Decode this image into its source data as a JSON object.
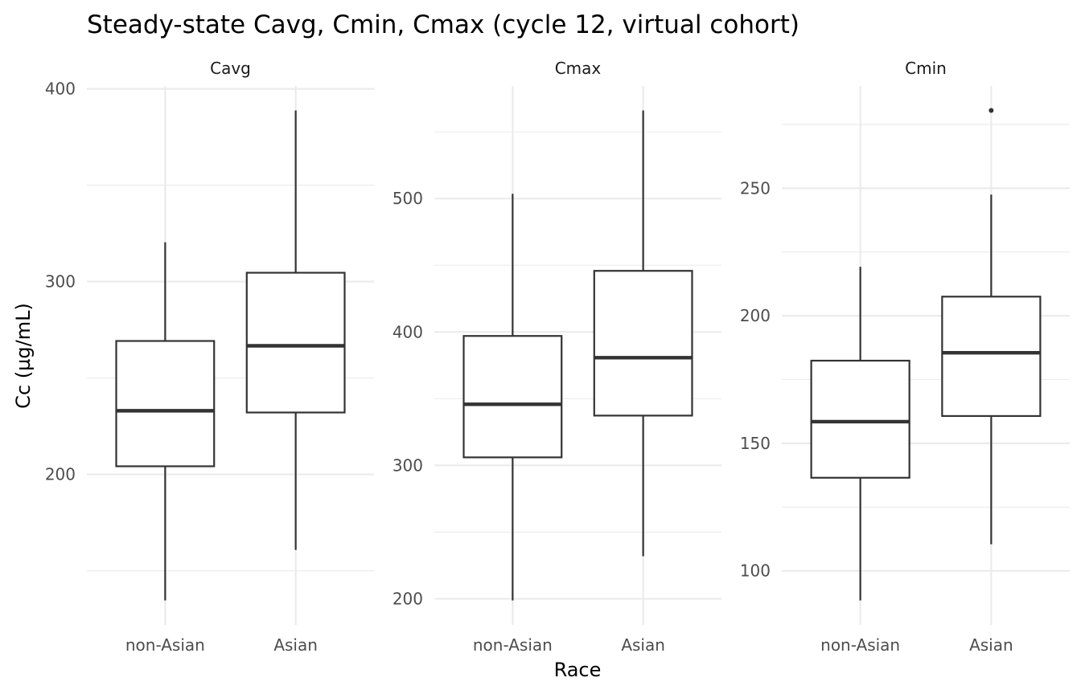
{
  "chart_data": {
    "type": "boxplot",
    "title": "Steady-state Cavg, Cmin, Cmax (cycle 12, virtual cohort)",
    "xlabel": "Race",
    "ylabel": "Cc (µg/mL)",
    "categories": [
      "non-Asian",
      "Asian"
    ],
    "grid": true,
    "panels": [
      {
        "name": "Cavg",
        "ylim": [
          121.9,
          401.5
        ],
        "yticks": [
          200,
          300,
          400
        ],
        "boxes": [
          {
            "category": "non-Asian",
            "whisker_low": 134.6,
            "q1": 204.2,
            "median": 233.0,
            "q3": 269.2,
            "whisker_high": 320.4,
            "outliers": []
          },
          {
            "category": "Asian",
            "whisker_low": 160.8,
            "q1": 232.1,
            "median": 266.7,
            "q3": 304.6,
            "whisker_high": 388.8,
            "outliers": []
          }
        ]
      },
      {
        "name": "Cmax",
        "ylim": [
          180.4,
          584.4
        ],
        "yticks": [
          200,
          300,
          400,
          500
        ],
        "boxes": [
          {
            "category": "non-Asian",
            "whisker_low": 198.8,
            "q1": 306.0,
            "median": 345.8,
            "q3": 397.0,
            "whisker_high": 503.6,
            "outliers": []
          },
          {
            "category": "Asian",
            "whisker_low": 231.9,
            "q1": 337.3,
            "median": 380.7,
            "q3": 445.8,
            "whisker_high": 566.0,
            "outliers": []
          }
        ]
      },
      {
        "name": "Cmin",
        "ylim": [
          78.8,
          290.1
        ],
        "yticks": [
          100,
          150,
          200,
          250
        ],
        "boxes": [
          {
            "category": "non-Asian",
            "whisker_low": 88.4,
            "q1": 136.5,
            "median": 158.5,
            "q3": 182.4,
            "whisker_high": 219.2,
            "outliers": []
          },
          {
            "category": "Asian",
            "whisker_low": 110.4,
            "q1": 160.7,
            "median": 185.5,
            "q3": 207.5,
            "whisker_high": 247.5,
            "outliers": [
              280.5
            ]
          }
        ]
      }
    ]
  }
}
